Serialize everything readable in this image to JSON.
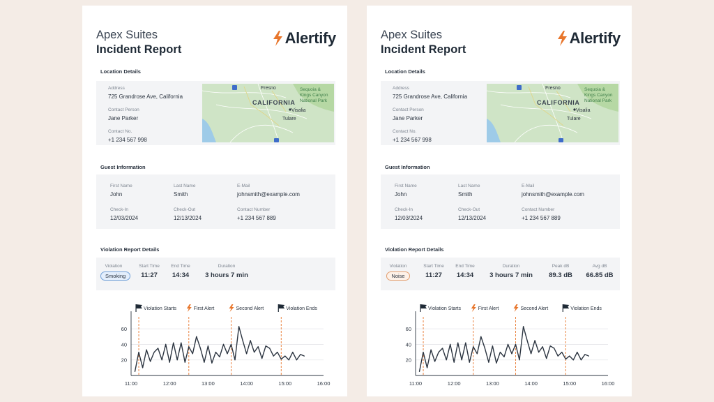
{
  "reports": [
    {
      "company": "Apex Suites",
      "title": "Incident Report",
      "brand": {
        "name": "Alertify",
        "accent": "#e8762c",
        "icon": "bolt-icon"
      },
      "location": {
        "section_title": "Location Details",
        "address_label": "Address",
        "address": "725 Grandrose Ave, California",
        "contact_person_label": "Contact Person",
        "contact_person": "Jane Parker",
        "contact_no_label": "Contact No.",
        "contact_no": "+1 234 567 998",
        "map": {
          "region": "CALIFORNIA",
          "city1": "Fresno",
          "city2": "Visalia",
          "city3": "Tulare",
          "park_line1": "Sequoia &",
          "park_line2": "Kings Canyon",
          "park_line3": "National Park",
          "highway": "5"
        }
      },
      "guest": {
        "section_title": "Guest Information",
        "first_name_label": "First Name",
        "first_name": "John",
        "last_name_label": "Last Name",
        "last_name": "Smith",
        "email_label": "E-Mail",
        "email": "johnsmith@example.com",
        "checkin_label": "Check-In",
        "checkin": "12/03/2024",
        "checkout_label": "Check-Out",
        "checkout": "12/13/2024",
        "contact_label": "Contact Number",
        "contact": "+1 234 567 889"
      },
      "violation": {
        "section_title": "Violation Report Details",
        "type_label": "Violation",
        "type": "Smoking",
        "start_label": "Start Time",
        "start": "11:27",
        "end_label": "End Time",
        "end": "14:34",
        "duration_label": "Duration",
        "duration": "3 hours 7 min"
      },
      "chart_data": {
        "type": "line",
        "legend": [
          "Violation Starts",
          "First Alert",
          "Second Alert",
          "Violation Ends"
        ],
        "x": [
          11.1,
          11.2,
          11.3,
          11.4,
          11.5,
          11.6,
          11.7,
          11.8,
          11.9,
          12.0,
          12.1,
          12.2,
          12.3,
          12.4,
          12.5,
          12.6,
          12.7,
          12.8,
          12.9,
          13.0,
          13.1,
          13.2,
          13.3,
          13.4,
          13.5,
          13.6,
          13.7,
          13.8,
          13.9,
          14.0,
          14.1,
          14.2,
          14.3,
          14.4,
          14.5,
          14.6,
          14.7,
          14.8,
          14.9,
          15.0,
          15.1,
          15.2,
          15.3,
          15.4,
          15.5
        ],
        "y": [
          5,
          30,
          10,
          33,
          18,
          30,
          35,
          20,
          40,
          17,
          42,
          20,
          42,
          17,
          37,
          28,
          50,
          35,
          17,
          38,
          16,
          30,
          24,
          40,
          28,
          40,
          20,
          63,
          45,
          28,
          45,
          30,
          37,
          22,
          38,
          35,
          25,
          30,
          21,
          25,
          20,
          30,
          20,
          27,
          25
        ],
        "xticks": [
          "11:00",
          "12:00",
          "13:00",
          "14:00",
          "15:00",
          "16:00"
        ],
        "xlim": [
          11,
          16
        ],
        "ylim": [
          0,
          70
        ],
        "yticks": [
          "20",
          "40",
          "60"
        ],
        "markers": [
          {
            "label": "Violation Starts",
            "x": 11.2,
            "kind": "flag"
          },
          {
            "label": "First Alert",
            "x": 12.5,
            "kind": "bolt"
          },
          {
            "label": "Second Alert",
            "x": 13.6,
            "kind": "bolt"
          },
          {
            "label": "Violation Ends",
            "x": 14.9,
            "kind": "flag"
          }
        ],
        "line_color": "#2b3440",
        "marker_color": "#e8762c",
        "grid": true
      }
    },
    {
      "company": "Apex Suites",
      "title": "Incident Report",
      "brand": {
        "name": "Alertify",
        "accent": "#e8762c",
        "icon": "bolt-icon"
      },
      "location": {
        "section_title": "Location Details",
        "address_label": "Address",
        "address": "725 Grandrose Ave, California",
        "contact_person_label": "Contact Person",
        "contact_person": "Jane Parker",
        "contact_no_label": "Contact No.",
        "contact_no": "+1 234 567 998",
        "map": {
          "region": "CALIFORNIA",
          "city1": "Fresno",
          "city2": "Visalia",
          "city3": "Tulare",
          "park_line1": "Sequoia &",
          "park_line2": "Kings Canyon",
          "park_line3": "National Park",
          "highway": "5"
        }
      },
      "guest": {
        "section_title": "Guest Information",
        "first_name_label": "First Name",
        "first_name": "John",
        "last_name_label": "Last Name",
        "last_name": "Smith",
        "email_label": "E-Mail",
        "email": "johnsmith@example.com",
        "checkin_label": "Check-In",
        "checkin": "12/03/2024",
        "checkout_label": "Check-Out",
        "checkout": "12/13/2024",
        "contact_label": "Contact Number",
        "contact": "+1 234 567 889"
      },
      "violation": {
        "section_title": "Violation Report Details",
        "type_label": "Violation",
        "type": "Noise",
        "start_label": "Start Time",
        "start": "11:27",
        "end_label": "End Time",
        "end": "14:34",
        "duration_label": "Duration",
        "duration": "3 hours 7 min",
        "peak_label": "Peak dB",
        "peak": "89.3 dB",
        "avg_label": "Avg dB",
        "avg": "66.85 dB"
      },
      "chart_data": {
        "type": "line",
        "legend": [
          "Violation Starts",
          "First Alert",
          "Second Alert",
          "Violation Ends"
        ],
        "x": [
          11.1,
          11.2,
          11.3,
          11.4,
          11.5,
          11.6,
          11.7,
          11.8,
          11.9,
          12.0,
          12.1,
          12.2,
          12.3,
          12.4,
          12.5,
          12.6,
          12.7,
          12.8,
          12.9,
          13.0,
          13.1,
          13.2,
          13.3,
          13.4,
          13.5,
          13.6,
          13.7,
          13.8,
          13.9,
          14.0,
          14.1,
          14.2,
          14.3,
          14.4,
          14.5,
          14.6,
          14.7,
          14.8,
          14.9,
          15.0,
          15.1,
          15.2,
          15.3,
          15.4,
          15.5
        ],
        "y": [
          5,
          30,
          10,
          33,
          18,
          30,
          35,
          20,
          40,
          17,
          42,
          20,
          42,
          17,
          37,
          28,
          50,
          35,
          17,
          38,
          16,
          30,
          24,
          40,
          28,
          40,
          20,
          63,
          45,
          28,
          45,
          30,
          37,
          22,
          38,
          35,
          25,
          30,
          21,
          25,
          20,
          30,
          20,
          27,
          25
        ],
        "xticks": [
          "11:00",
          "12:00",
          "13:00",
          "14:00",
          "15:00",
          "16:00"
        ],
        "xlim": [
          11,
          16
        ],
        "ylim": [
          0,
          70
        ],
        "yticks": [
          "20",
          "40",
          "60"
        ],
        "markers": [
          {
            "label": "Violation Starts",
            "x": 11.2,
            "kind": "flag"
          },
          {
            "label": "First Alert",
            "x": 12.5,
            "kind": "bolt"
          },
          {
            "label": "Second Alert",
            "x": 13.6,
            "kind": "bolt"
          },
          {
            "label": "Violation Ends",
            "x": 14.9,
            "kind": "flag"
          }
        ],
        "line_color": "#2b3440",
        "marker_color": "#e8762c",
        "grid": true
      }
    }
  ]
}
